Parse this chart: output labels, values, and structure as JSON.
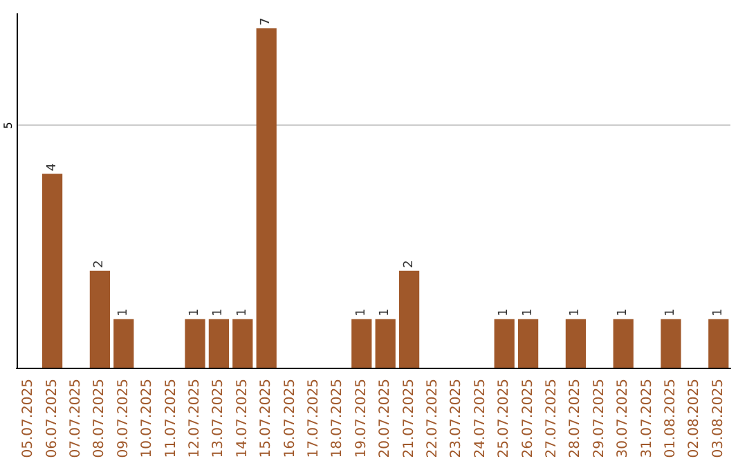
{
  "chart_data": {
    "type": "bar",
    "categories": [
      "05.07.2025",
      "06.07.2025",
      "07.07.2025",
      "08.07.2025",
      "09.07.2025",
      "10.07.2025",
      "11.07.2025",
      "12.07.2025",
      "13.07.2025",
      "14.07.2025",
      "15.07.2025",
      "16.07.2025",
      "17.07.2025",
      "18.07.2025",
      "19.07.2025",
      "20.07.2025",
      "21.07.2025",
      "22.07.2025",
      "23.07.2025",
      "24.07.2025",
      "25.07.2025",
      "26.07.2025",
      "27.07.2025",
      "28.07.2025",
      "29.07.2025",
      "30.07.2025",
      "31.07.2025",
      "01.08.2025",
      "02.08.2025",
      "03.08.2025"
    ],
    "values": [
      0,
      4,
      0,
      2,
      1,
      0,
      0,
      1,
      1,
      1,
      7,
      0,
      0,
      0,
      1,
      1,
      2,
      0,
      0,
      0,
      1,
      1,
      0,
      1,
      0,
      1,
      0,
      1,
      0,
      1
    ],
    "value_labels": [
      null,
      "4",
      null,
      "2",
      "1",
      null,
      null,
      "1",
      "1",
      "1",
      "7",
      null,
      null,
      null,
      "1",
      "1",
      "2",
      null,
      null,
      null,
      "1",
      "1",
      null,
      "1",
      null,
      "1",
      null,
      "1",
      null,
      "1"
    ],
    "color": "#a0582a",
    "ylim": [
      0,
      7.3
    ],
    "yticks": [
      5
    ],
    "grid": "y"
  }
}
